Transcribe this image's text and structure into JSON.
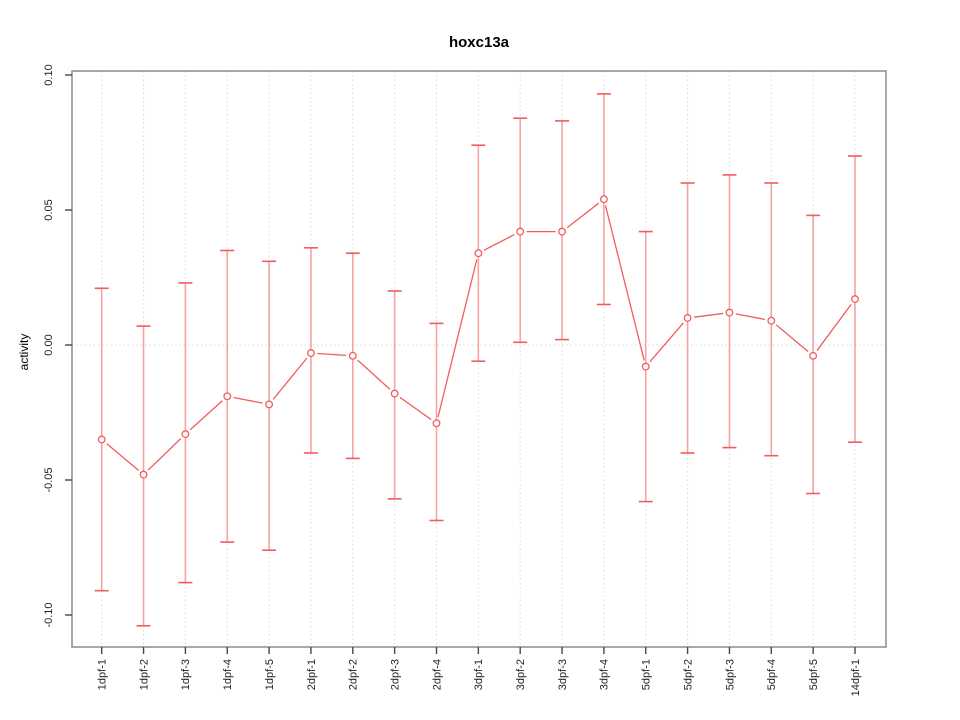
{
  "chart_data": {
    "type": "line",
    "title": "hoxc13a",
    "xlabel": "",
    "ylabel": "activity",
    "categories": [
      "1dpf-1",
      "1dpf-2",
      "1dpf-3",
      "1dpf-4",
      "1dpf-5",
      "2dpf-1",
      "2dpf-2",
      "2dpf-3",
      "2dpf-4",
      "3dpf-1",
      "3dpf-2",
      "3dpf-3",
      "3dpf-4",
      "5dpf-1",
      "5dpf-2",
      "5dpf-3",
      "5dpf-4",
      "5dpf-5",
      "14dpf-1"
    ],
    "series": [
      {
        "name": "activity",
        "values": [
          -0.035,
          -0.048,
          -0.033,
          -0.019,
          -0.022,
          -0.003,
          -0.004,
          -0.018,
          -0.029,
          0.034,
          0.042,
          0.042,
          0.054,
          -0.008,
          0.01,
          0.012,
          0.009,
          -0.004,
          0.017
        ],
        "error_upper": [
          0.021,
          0.007,
          0.023,
          0.035,
          0.031,
          0.036,
          0.034,
          0.02,
          0.008,
          0.074,
          0.084,
          0.083,
          0.093,
          0.042,
          0.06,
          0.063,
          0.06,
          0.048,
          0.07
        ],
        "error_lower": [
          -0.091,
          -0.104,
          -0.088,
          -0.073,
          -0.076,
          -0.04,
          -0.042,
          -0.057,
          -0.065,
          -0.006,
          0.001,
          0.002,
          0.015,
          -0.058,
          -0.04,
          -0.038,
          -0.041,
          -0.055,
          -0.036
        ]
      }
    ],
    "y_tick_values": [
      -0.1,
      -0.05,
      0,
      0.05,
      0.1
    ],
    "y_tick_labels": [
      "-0.10",
      "-0.05",
      "0.00",
      "0.05",
      "0.10"
    ],
    "ylim": [
      -0.113,
      0.102
    ],
    "grid": "vertical dotted line at each category, dotted horizontal line at y=0",
    "legend": "none",
    "marker": "open-circle",
    "colors": {
      "line": "#f25c5c",
      "whisker": "#f5a3a3",
      "cap": "#f25c5c",
      "point_stroke": "#f25c5c",
      "grid": "#d9d9d9",
      "box": "#8c8c8c",
      "tick": "#474747",
      "tick_label": "#1f1f1f",
      "background": "#ffffff"
    }
  }
}
